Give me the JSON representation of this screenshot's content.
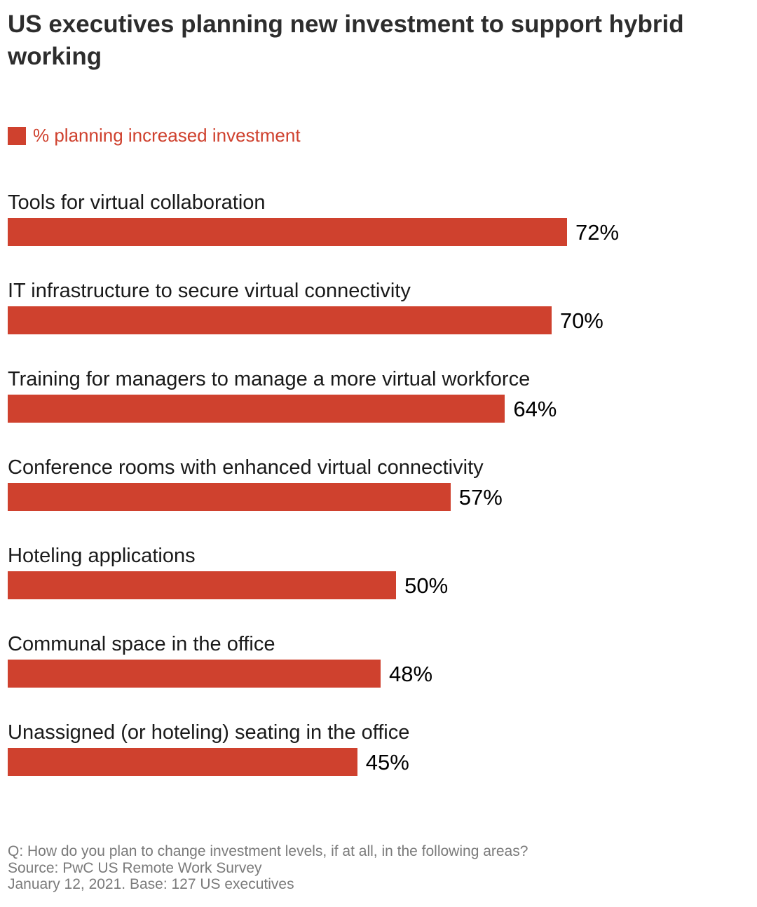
{
  "colors": {
    "bar": "#cf412e",
    "title": "#2d2d2d",
    "footer": "#7a7a7a"
  },
  "chart_data": {
    "type": "bar",
    "orientation": "horizontal",
    "title": "US executives planning new investment to support hybrid working",
    "legend": {
      "position": "top-left",
      "entries": [
        "% planning increased investment"
      ]
    },
    "categories": [
      "Tools for virtual collaboration",
      "IT infrastructure to secure virtual connectivity",
      "Training for managers to manage a more virtual workforce",
      "Conference rooms with enhanced virtual connectivity",
      "Hoteling applications",
      "Communal space in the office",
      "Unassigned (or hoteling) seating in the office"
    ],
    "series": [
      {
        "name": "% planning increased investment",
        "values": [
          72,
          70,
          64,
          57,
          50,
          48,
          45
        ]
      }
    ],
    "value_labels": [
      "72%",
      "70%",
      "64%",
      "57%",
      "50%",
      "48%",
      "45%"
    ],
    "xlim": [
      0,
      100
    ],
    "grid": false
  },
  "footer": {
    "question": "Q: How do you plan to change investment levels, if at all, in the following areas?",
    "source": "Source: PwC US Remote Work Survey",
    "base": "January 12, 2021. Base: 127 US executives"
  }
}
